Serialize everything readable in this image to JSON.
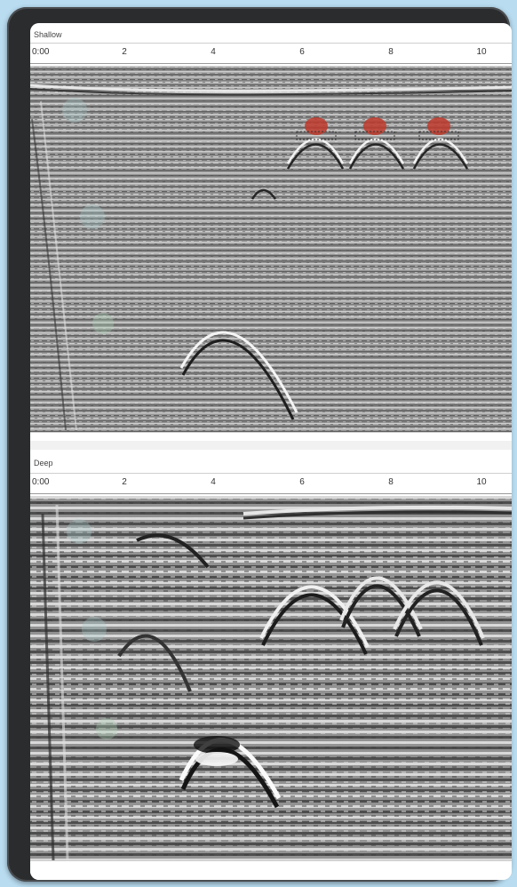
{
  "panels": [
    {
      "label": "Shallow",
      "ticks": [
        "0:00",
        "2",
        "4",
        "6",
        "8",
        "10"
      ],
      "targets": [
        "",
        "",
        ""
      ]
    },
    {
      "label": "Deep",
      "ticks": [
        "0:00",
        "2",
        "4",
        "6",
        "8",
        "10"
      ]
    }
  ],
  "colors": {
    "background": "#b9dcf0",
    "device_frame": "#2a2c2e",
    "target_marker": "#c0392b",
    "radargram_gray": "#8f8f8f"
  }
}
